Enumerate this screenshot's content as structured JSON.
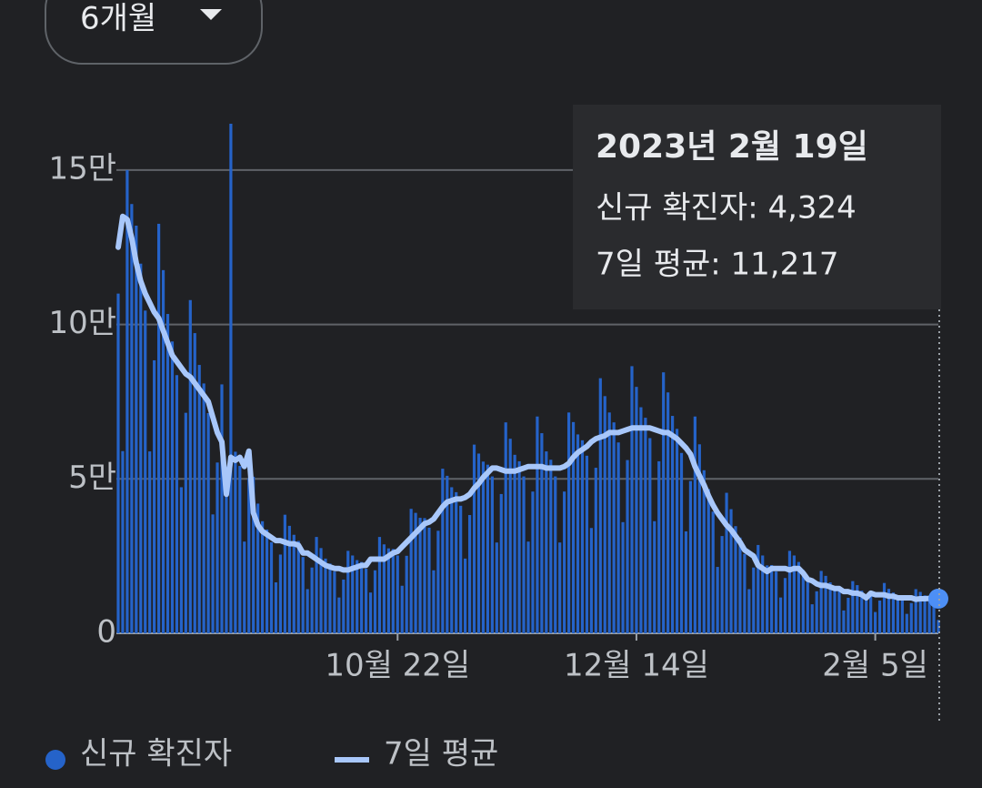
{
  "chart_data": {
    "type": "bar",
    "period_selector": "6개월",
    "categories": [
      null,
      null,
      null,
      null,
      null,
      null,
      null,
      null,
      null,
      null,
      null,
      null,
      null,
      null,
      null,
      null,
      null,
      null,
      null,
      null,
      null,
      null,
      null,
      null,
      null,
      null,
      null,
      null,
      null,
      null,
      null,
      null,
      null,
      null,
      null,
      null,
      null,
      null,
      null,
      null,
      null,
      null,
      null,
      null,
      null,
      null,
      null,
      null,
      null,
      null,
      null,
      null,
      null,
      null,
      null,
      null,
      null,
      null,
      null,
      null,
      null,
      null,
      "10월 22일",
      null,
      null,
      null,
      null,
      null,
      null,
      null,
      null,
      null,
      null,
      null,
      null,
      null,
      null,
      null,
      null,
      null,
      null,
      null,
      null,
      null,
      null,
      null,
      null,
      null,
      null,
      null,
      null,
      null,
      null,
      null,
      null,
      null,
      null,
      null,
      null,
      null,
      null,
      null,
      null,
      null,
      null,
      null,
      null,
      null,
      null,
      null,
      null,
      null,
      null,
      null,
      null,
      "12월 14일",
      null,
      null,
      null,
      null,
      null,
      null,
      null,
      null,
      null,
      null,
      null,
      null,
      null,
      null,
      null,
      null,
      null,
      null,
      null,
      null,
      null,
      null,
      null,
      null,
      null,
      null,
      null,
      null,
      null,
      null,
      null,
      null,
      null,
      null,
      null,
      null,
      null,
      null,
      null,
      null,
      null,
      null,
      null,
      null,
      null,
      null,
      null,
      null,
      null,
      null,
      null,
      null,
      "2월 5일",
      null,
      null,
      null,
      null,
      null,
      null,
      null,
      null,
      null,
      null,
      null,
      null,
      null,
      null
    ],
    "series": [
      {
        "name": "신규 확진자",
        "type": "bar",
        "color": "#2563c9",
        "values": [
          110000,
          59000,
          150000,
          139000,
          132000,
          119700,
          104500,
          58900,
          88400,
          132600,
          117600,
          103400,
          94500,
          83600,
          47300,
          71400,
          107900,
          97200,
          86900,
          80900,
          71300,
          38500,
          55300,
          80600,
          54000,
          165000,
          58800,
          54200,
          29700,
          50200,
          50700,
          42000,
          36300,
          33600,
          29500,
          16500,
          25500,
          38400,
          34800,
          31900,
          29900,
          24700,
          14300,
          21300,
          31200,
          27600,
          24200,
          22600,
          20000,
          11600,
          17400,
          26700,
          25200,
          23700,
          23100,
          20900,
          13200,
          20400,
          31200,
          28800,
          27500,
          27300,
          25200,
          15400,
          25100,
          40300,
          39000,
          37400,
          37300,
          34200,
          20400,
          33200,
          53300,
          51000,
          47300,
          45700,
          41300,
          24200,
          38300,
          61100,
          58200,
          55600,
          54600,
          50800,
          29400,
          45100,
          68300,
          63000,
          57800,
          55700,
          50800,
          29700,
          45900,
          70200,
          64800,
          58900,
          56200,
          50800,
          29400,
          45900,
          71500,
          68400,
          64400,
          62500,
          57500,
          34100,
          53600,
          82600,
          76800,
          71500,
          68300,
          61800,
          36000,
          56100,
          86500,
          79800,
          73200,
          69800,
          63200,
          36300,
          55700,
          84500,
          78000,
          70400,
          66200,
          58400,
          33000,
          49300,
          70200,
          61200,
          52800,
          46700,
          39400,
          21500,
          31500,
          45500,
          40200,
          34700,
          31000,
          25700,
          14300,
          21300,
          28600,
          25200,
          22000,
          22100,
          20000,
          11600,
          17900,
          26700,
          25200,
          23100,
          20500,
          16600,
          9400,
          13600,
          20200,
          18600,
          16500,
          15200,
          13800,
          7400,
          11500,
          16900,
          15600,
          13800,
          12100,
          12400,
          6900,
          10600,
          16300,
          14400,
          13200,
          12100,
          10900,
          6300,
          9800,
          14300,
          13400,
          12300,
          11900,
          10600,
          4324
        ]
      },
      {
        "name": "7일 평균",
        "type": "line",
        "color": "#a8c7fa",
        "values": [
          125000,
          135000,
          134000,
          128000,
          120000,
          114000,
          110000,
          107000,
          104000,
          102000,
          98000,
          94000,
          90000,
          88000,
          86000,
          84000,
          83000,
          81000,
          79000,
          77000,
          75000,
          70000,
          65000,
          62000,
          45000,
          57000,
          56000,
          57000,
          54000,
          59000,
          39000,
          35000,
          33000,
          32000,
          31000,
          30000,
          30000,
          29500,
          29000,
          29000,
          28500,
          26000,
          26000,
          25000,
          24000,
          23000,
          22000,
          21500,
          21000,
          21000,
          20500,
          20500,
          21000,
          21500,
          22000,
          22000,
          24000,
          24000,
          24000,
          24000,
          25000,
          26000,
          26500,
          28000,
          29500,
          31000,
          32500,
          34000,
          35500,
          36000,
          37000,
          39000,
          41000,
          42500,
          43000,
          43500,
          43500,
          44000,
          45000,
          47000,
          48500,
          50500,
          52000,
          53500,
          53500,
          53000,
          52500,
          52500,
          52500,
          53000,
          53500,
          54000,
          54000,
          54000,
          54000,
          53500,
          53500,
          53500,
          53500,
          54000,
          55000,
          57000,
          58500,
          59500,
          60500,
          62000,
          63000,
          63500,
          64000,
          65000,
          65000,
          65000,
          65500,
          66000,
          66500,
          66500,
          66500,
          66500,
          66500,
          66000,
          65500,
          65000,
          65000,
          64000,
          63000,
          61500,
          60000,
          58000,
          54000,
          51000,
          48000,
          44500,
          41500,
          39000,
          37000,
          35000,
          33500,
          31500,
          29500,
          27000,
          26000,
          25000,
          22000,
          21000,
          20000,
          21000,
          21000,
          21000,
          21000,
          20500,
          21000,
          21000,
          19500,
          17500,
          17000,
          16000,
          15500,
          15500,
          15000,
          14500,
          14500,
          13500,
          13500,
          13000,
          13000,
          12500,
          11500,
          13000,
          12500,
          12500,
          12500,
          12000,
          12000,
          11500,
          11500,
          11500,
          11500,
          11000,
          11200,
          11200,
          11300,
          11200,
          11217
        ]
      }
    ],
    "ylim": [
      0,
      170000
    ],
    "yticks": [
      0,
      {
        "value": 50000,
        "label": "5만"
      },
      {
        "value": 100000,
        "label": "10만"
      },
      {
        "value": 150000,
        "label": "15만"
      }
    ],
    "grid": true,
    "legend": "bottom-left",
    "tooltip": {
      "title": "2023년 2월 19일",
      "lines": [
        "신규 확진자: 4,324",
        "7일 평균: 11,217"
      ]
    }
  }
}
